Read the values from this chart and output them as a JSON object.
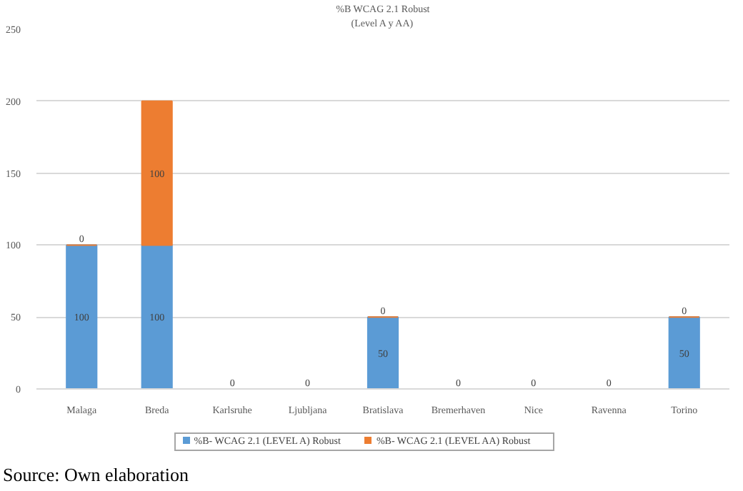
{
  "chart_data": {
    "type": "bar",
    "title": "%B WCAG 2.1 Robust",
    "subtitle": "(Level A y AA)",
    "categories": [
      "Malaga",
      "Breda",
      "Karlsruhe",
      "Ljubljana",
      "Bratislava",
      "Bremerhaven",
      "Nice",
      "Ravenna",
      "Torino"
    ],
    "series": [
      {
        "name": "%B- WCAG 2.1 (LEVEL A) Robust",
        "color": "#5b9bd5",
        "values": [
          100,
          100,
          0,
          0,
          50,
          0,
          0,
          0,
          50
        ],
        "value_labels": [
          "100",
          "100",
          null,
          null,
          "50",
          null,
          null,
          null,
          "50"
        ]
      },
      {
        "name": "%B- WCAG 2.1 (LEVEL AA) Robust",
        "color": "#ed7d31",
        "values": [
          0,
          100,
          0,
          0,
          0,
          0,
          0,
          0,
          0
        ],
        "value_labels": [
          "0",
          "100",
          "0",
          "0",
          "0",
          "0",
          "0",
          "0",
          "0"
        ]
      }
    ],
    "stacked": true,
    "ylim": [
      0,
      250
    ],
    "yticks": [
      0,
      50,
      100,
      150,
      200,
      250
    ],
    "grid": "y",
    "legend": "bottom",
    "annotations": [
      "Source: Own elaboration"
    ]
  }
}
